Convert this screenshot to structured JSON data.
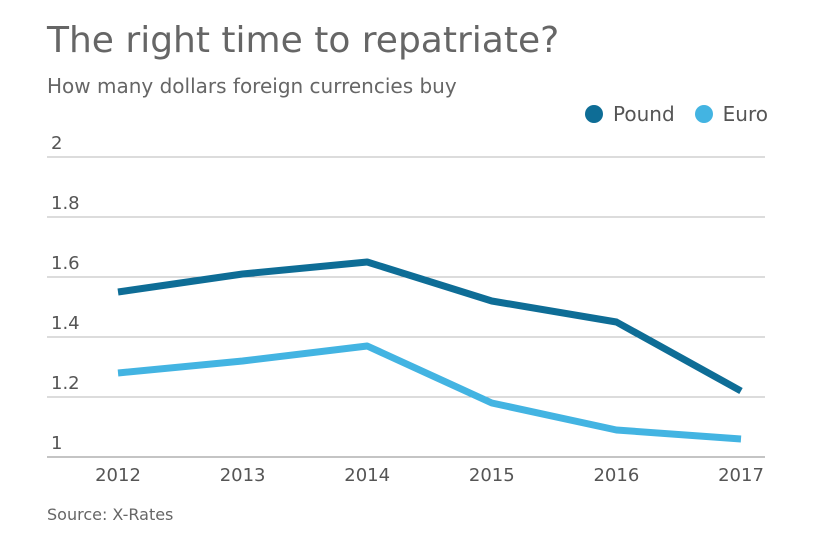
{
  "title": "The right time to repatriate?",
  "subtitle": "How many dollars foreign currencies buy",
  "source": "Source: X-Rates",
  "colors": {
    "pound": "#0e6d96",
    "euro": "#43b4e2",
    "grid": "#b8b8b8",
    "axis": "#888888",
    "text": "#555555"
  },
  "chart_data": {
    "type": "line",
    "x": [
      "2012",
      "2013",
      "2014",
      "2015",
      "2016",
      "2017"
    ],
    "ylim": [
      1,
      2
    ],
    "yticks": [
      1,
      1.2,
      1.4,
      1.6,
      1.8,
      2
    ],
    "ytick_labels": [
      "1",
      "1.2",
      "1.4",
      "1.6",
      "1.8",
      "2"
    ],
    "grid": true,
    "legend_position": "top-right",
    "series": [
      {
        "name": "Pound",
        "color": "#0e6d96",
        "values": [
          1.55,
          1.61,
          1.65,
          1.52,
          1.45,
          1.22
        ]
      },
      {
        "name": "Euro",
        "color": "#43b4e2",
        "values": [
          1.28,
          1.32,
          1.37,
          1.18,
          1.09,
          1.06
        ]
      }
    ]
  }
}
